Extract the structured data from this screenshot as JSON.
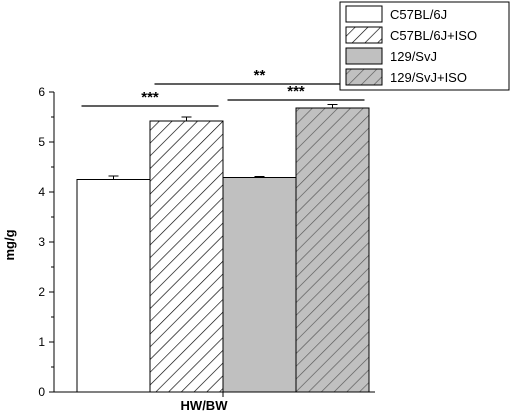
{
  "chart_data": {
    "type": "bar",
    "categories": [
      "HW/BW"
    ],
    "xlabel": "HW/BW",
    "ylabel": "mg/g",
    "ylim": [
      0,
      6
    ],
    "yticks": [
      "0",
      "1",
      "2",
      "3",
      "4",
      "5",
      "6"
    ],
    "grid": false,
    "legend_position": "top-right",
    "series": [
      {
        "name": "C57BL/6J",
        "values": [
          4.25
        ],
        "error": [
          0.07
        ],
        "fill": "#ffffff",
        "pattern": "none"
      },
      {
        "name": "C57BL/6J+ISO",
        "values": [
          5.42
        ],
        "error": [
          0.08
        ],
        "fill": "#ffffff",
        "pattern": "hatch"
      },
      {
        "name": "129/SvJ",
        "values": [
          4.29
        ],
        "error": [
          0.02
        ],
        "fill": "#c0c0c0",
        "pattern": "none"
      },
      {
        "name": "129/SvJ+ISO",
        "values": [
          5.68
        ],
        "error": [
          0.07
        ],
        "fill": "#c0c0c0",
        "pattern": "hatch"
      }
    ],
    "significance": [
      {
        "between": [
          0,
          1
        ],
        "label": "***"
      },
      {
        "between": [
          1,
          3
        ],
        "label": "**"
      },
      {
        "between": [
          2,
          3
        ],
        "label": "***"
      }
    ]
  }
}
